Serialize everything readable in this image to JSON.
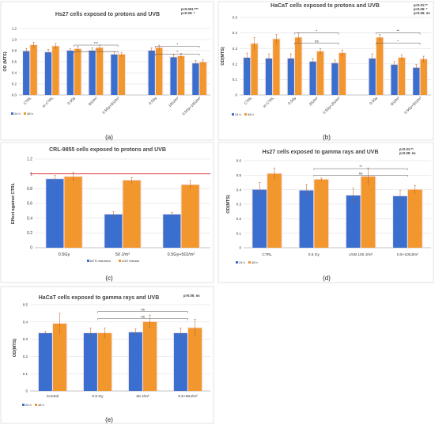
{
  "figure": {
    "panel_labels": [
      "(a)",
      "(b)",
      "(c)",
      "(d)",
      "(e)"
    ],
    "colors": {
      "blue": "#3a6fd0",
      "orange": "#f2962e",
      "red_line": "#e02020",
      "grid": "#d9d9d9",
      "bracket": "#555555"
    }
  },
  "chart_data": [
    {
      "id": "a",
      "type": "bar",
      "title": "Hs27 cells exposed to protons and UVB",
      "ylabel": "OD (MTS)",
      "ylim": [
        0,
        1.2
      ],
      "yticks": [
        "0.0",
        "0.2",
        "0.4",
        "0.6",
        "0.8",
        "1.0",
        "1.2"
      ],
      "categories": [
        "CTRL",
        "Irr CTRL",
        "0.5Gy",
        "50J/m²",
        "0.5Gy+50J/m²",
        "0.5Gy",
        "100J/m²",
        "0.5Gy+100J/m²"
      ],
      "groups": [
        [
          0,
          1,
          2,
          3,
          4
        ],
        [
          5,
          6,
          7
        ]
      ],
      "series": [
        {
          "name": "24 h",
          "values": [
            0.79,
            0.77,
            0.8,
            0.8,
            0.73,
            0.8,
            0.68,
            0.57
          ],
          "err": [
            0.05,
            0.05,
            0.04,
            0.05,
            0.05,
            0.05,
            0.05,
            0.05
          ]
        },
        {
          "name": "48 h",
          "values": [
            0.9,
            0.88,
            0.83,
            0.85,
            0.73,
            0.85,
            0.7,
            0.59
          ],
          "err": [
            0.05,
            0.05,
            0.05,
            0.05,
            0.04,
            0.05,
            0.05,
            0.05
          ]
        }
      ],
      "legend": [
        "24 h",
        "48 h"
      ],
      "significance_note": [
        "p<0.001:***",
        "p<0.05: *"
      ],
      "brackets": [
        {
          "from": 2,
          "to": 4,
          "level": 0.9,
          "label": "***"
        },
        {
          "from": 2,
          "to": 4,
          "level": 0.78,
          "label": "*"
        },
        {
          "from": 5,
          "to": 7,
          "level": 0.88,
          "label": "*"
        },
        {
          "from": 5,
          "to": 7,
          "level": 0.74,
          "label": "*"
        }
      ]
    },
    {
      "id": "b",
      "type": "bar",
      "title": "HaCaT cells exposed to protons and UVB",
      "ylabel": "OD(MTS)",
      "ylim": [
        0,
        0.5
      ],
      "yticks": [
        "0",
        "0.1",
        "0.2",
        "0.3",
        "0.4",
        "0.5"
      ],
      "categories": [
        "CTRL",
        "Irr CTRL",
        "0.5Gy",
        "25J/m²",
        "0.5Gy+25J/m²",
        "0.5Gy",
        "50J/m²",
        "0.5Gy+50J/m²"
      ],
      "groups": [
        [
          0,
          1,
          2,
          3,
          4
        ],
        [
          5,
          6,
          7
        ]
      ],
      "series": [
        {
          "name": "24 h",
          "values": [
            0.24,
            0.235,
            0.235,
            0.215,
            0.205,
            0.235,
            0.195,
            0.175
          ],
          "err": [
            0.03,
            0.03,
            0.03,
            0.02,
            0.02,
            0.03,
            0.02,
            0.02
          ]
        },
        {
          "name": "48 h",
          "values": [
            0.33,
            0.36,
            0.37,
            0.28,
            0.27,
            0.37,
            0.24,
            0.23
          ],
          "err": [
            0.04,
            0.03,
            0.03,
            0.02,
            0.02,
            0.02,
            0.02,
            0.02
          ]
        }
      ],
      "legend": [
        "24 h",
        "48 h"
      ],
      "significance_note": [
        "p<0.01:**",
        "p<0.05: *",
        "p>0.05: ns"
      ],
      "brackets": [
        {
          "from": 2,
          "to": 4,
          "level": 0.4,
          "label": "*"
        },
        {
          "from": 2,
          "to": 4,
          "level": 0.335,
          "label": "ns"
        },
        {
          "from": 5,
          "to": 7,
          "level": 0.4,
          "label": "**"
        },
        {
          "from": 5,
          "to": 7,
          "level": 0.335,
          "label": "*"
        }
      ]
    },
    {
      "id": "c",
      "type": "bar",
      "title": "CRL-9855 cells exposed to protons and UVB",
      "ylabel": "Effect against CTRL",
      "ylim": [
        0,
        1.2
      ],
      "yticks": [
        "0",
        "0.2",
        "0.4",
        "0.6",
        "0.8",
        "1",
        "1.2"
      ],
      "categories": [
        "0.5Gy",
        "50 J/m²",
        "0.5Gy+50J/m²"
      ],
      "series": [
        {
          "name": "MTS reduction",
          "values": [
            0.93,
            0.45,
            0.45
          ],
          "err": [
            0.05,
            0.04,
            0.03
          ]
        },
        {
          "name": "LDH release",
          "values": [
            0.96,
            0.91,
            0.85
          ],
          "err": [
            0.06,
            0.04,
            0.06
          ]
        }
      ],
      "legend": [
        "MTS reduction",
        "LDH release"
      ],
      "reference_line": 1.0
    },
    {
      "id": "d",
      "type": "bar",
      "title": "Hs27 cells exposed to gamma rays and UVB",
      "ylabel": "OD(MTS)",
      "ylim": [
        0,
        0.6
      ],
      "yticks": [
        "0",
        "0.1",
        "0.2",
        "0.3",
        "0.4",
        "0.5",
        "0.6"
      ],
      "categories": [
        "CTRL",
        "0.5 Gy",
        "UVB 100 J/m²",
        "0.5+100J/m²"
      ],
      "series": [
        {
          "name": "24 h",
          "values": [
            0.4,
            0.395,
            0.36,
            0.355
          ],
          "err": [
            0.05,
            0.04,
            0.05,
            0.04
          ]
        },
        {
          "name": "48 h",
          "values": [
            0.51,
            0.47,
            0.49,
            0.4
          ],
          "err": [
            0.04,
            0.01,
            0.06,
            0.03
          ]
        }
      ],
      "legend": [
        "24 h",
        "48 h"
      ],
      "significance_note": [
        "p<0.01:**",
        "p>0.05: ns"
      ],
      "brackets": [
        {
          "from": 1,
          "to": 3,
          "level": 0.545,
          "label": "**"
        },
        {
          "from": 1,
          "to": 3,
          "level": 0.5,
          "label": "ns"
        }
      ]
    },
    {
      "id": "e",
      "type": "bar",
      "title": "HaCaT cells exposed to gamma rays and UVB",
      "ylabel": "OD(MTS)",
      "ylim": [
        0,
        0.5
      ],
      "yticks": [
        "0",
        "0.1",
        "0.2",
        "0.3",
        "0.4",
        "0.5"
      ],
      "categories": [
        "Control",
        "0.5 Gy",
        "50 J/m²",
        "0.5+50J/m²"
      ],
      "series": [
        {
          "name": "24 h",
          "values": [
            0.335,
            0.335,
            0.34,
            0.335
          ],
          "err": [
            0.01,
            0.03,
            0.02,
            0.03
          ]
        },
        {
          "name": "48 h",
          "values": [
            0.39,
            0.335,
            0.4,
            0.365
          ],
          "err": [
            0.06,
            0.03,
            0.04,
            0.05
          ]
        }
      ],
      "legend": [
        "24 h",
        "48 h"
      ],
      "significance_note": [
        "p>0.05: ns"
      ],
      "brackets": [
        {
          "from": 1,
          "to": 3,
          "level": 0.46,
          "label": "ns"
        },
        {
          "from": 1,
          "to": 3,
          "level": 0.42,
          "label": "ns"
        }
      ]
    }
  ]
}
